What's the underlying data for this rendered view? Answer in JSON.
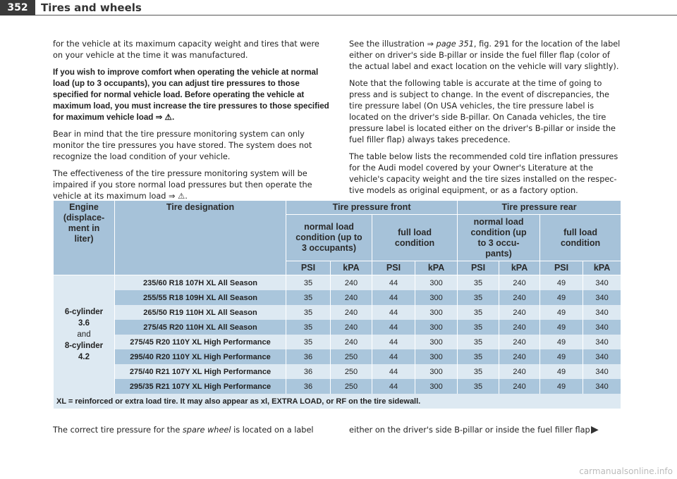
{
  "header": {
    "page_number": "352",
    "title": "Tires and wheels"
  },
  "left_column": [
    "for the vehicle at its maximum capacity weight and tires that were on your vehicle at the time it was manufactured.",
    "If you wish to improve comfort when operating the vehicle at normal load (up to 3 occupants), you can adjust tire pressures to those specified for normal vehicle load. Before operating the vehicle at maximum load, you must increase the tire pressures to those specified for maximum vehicle load ⇒ ⚠.",
    "Bear in mind that the tire pressure monitoring system can only monitor the tire pressures you have stored. The system does not recognize the load condition of your vehicle.",
    "The effectiveness of the tire pressure monitoring system will be impaired if you store normal load pressures but then operate the vehicle at its maximum load ⇒ ⚠."
  ],
  "right_column": {
    "intro": [
      "See the illustration ⇒ ",
      "page 351",
      ", fig. 291 for the location of the label either on driver's side B-pillar or inside the fuel filler flap (color of the actual label and exact location on the vehicle will vary slightly)."
    ],
    "paragraphs": [
      "Note that the following table is accurate at the time of going to press and is subject to change. In the event of discrepancies, the tire pressure label (On USA vehicles, the tire pressure label is located on the driver's side B-pillar. On Canada vehicles, the tire pressure label is located either on the driver's B-pillar or inside the fuel filler flap) always takes precedence.",
      "The table below lists the recommended cold tire inflation pressures for the Audi model covered by your Owner's Literature at the vehicle's capacity weight and the tire sizes installed on the respec-tive models as original equipment, or as a factory option."
    ]
  },
  "table": {
    "headers": {
      "engine": [
        "Engine",
        "(displace-",
        "ment in",
        "liter)"
      ],
      "tire_designation": "Tire designation",
      "front": "Tire pressure front",
      "rear": "Tire pressure rear",
      "front_normal": [
        "normal load",
        "condition (up to",
        "3 occupants)"
      ],
      "front_full": [
        "full load",
        "condition"
      ],
      "rear_normal": [
        "normal load",
        "condition (up",
        "to 3 occu-",
        "pants)"
      ],
      "rear_full": [
        "full load",
        "condition"
      ],
      "units": [
        "PSI",
        "kPA",
        "PSI",
        "kPA",
        "PSI",
        "kPA",
        "PSI",
        "kPA"
      ]
    },
    "engine": [
      "6-cylinder",
      "3.6",
      "and",
      "8-cylinder",
      "4.2"
    ],
    "rows": [
      {
        "tire": "235/60 R18 107H XL All Season",
        "values": [
          35,
          240,
          44,
          300,
          35,
          240,
          49,
          340
        ]
      },
      {
        "tire": "255/55 R18 109H XL All Season",
        "values": [
          35,
          240,
          44,
          300,
          35,
          240,
          49,
          340
        ]
      },
      {
        "tire": "265/50 R19 110H XL All Season",
        "values": [
          35,
          240,
          44,
          300,
          35,
          240,
          49,
          340
        ]
      },
      {
        "tire": "275/45 R20 110H XL All Season",
        "values": [
          35,
          240,
          44,
          300,
          35,
          240,
          49,
          340
        ]
      },
      {
        "tire": "275/45 R20 110Y XL High Performance",
        "values": [
          35,
          240,
          44,
          300,
          35,
          240,
          49,
          340
        ]
      },
      {
        "tire": "295/40 R20 110Y XL High Performance",
        "values": [
          36,
          250,
          44,
          300,
          35,
          240,
          49,
          340
        ]
      },
      {
        "tire": "275/40 R21 107Y XL High Performance",
        "values": [
          36,
          250,
          44,
          300,
          35,
          240,
          49,
          340
        ]
      },
      {
        "tire": "295/35 R21 107Y XL High Performance",
        "values": [
          36,
          250,
          44,
          300,
          35,
          240,
          49,
          340
        ]
      }
    ],
    "note": "XL = reinforced or extra load tire. It may also appear as xl, EXTRA LOAD, or RF on the tire sidewall."
  },
  "bottom": {
    "left": [
      "The correct tire pressure for the ",
      "spare wheel",
      " is located on a label"
    ],
    "right": "either on the driver's side B-pillar or inside the fuel filler flap."
  },
  "watermark": "carmanualsonline.info"
}
